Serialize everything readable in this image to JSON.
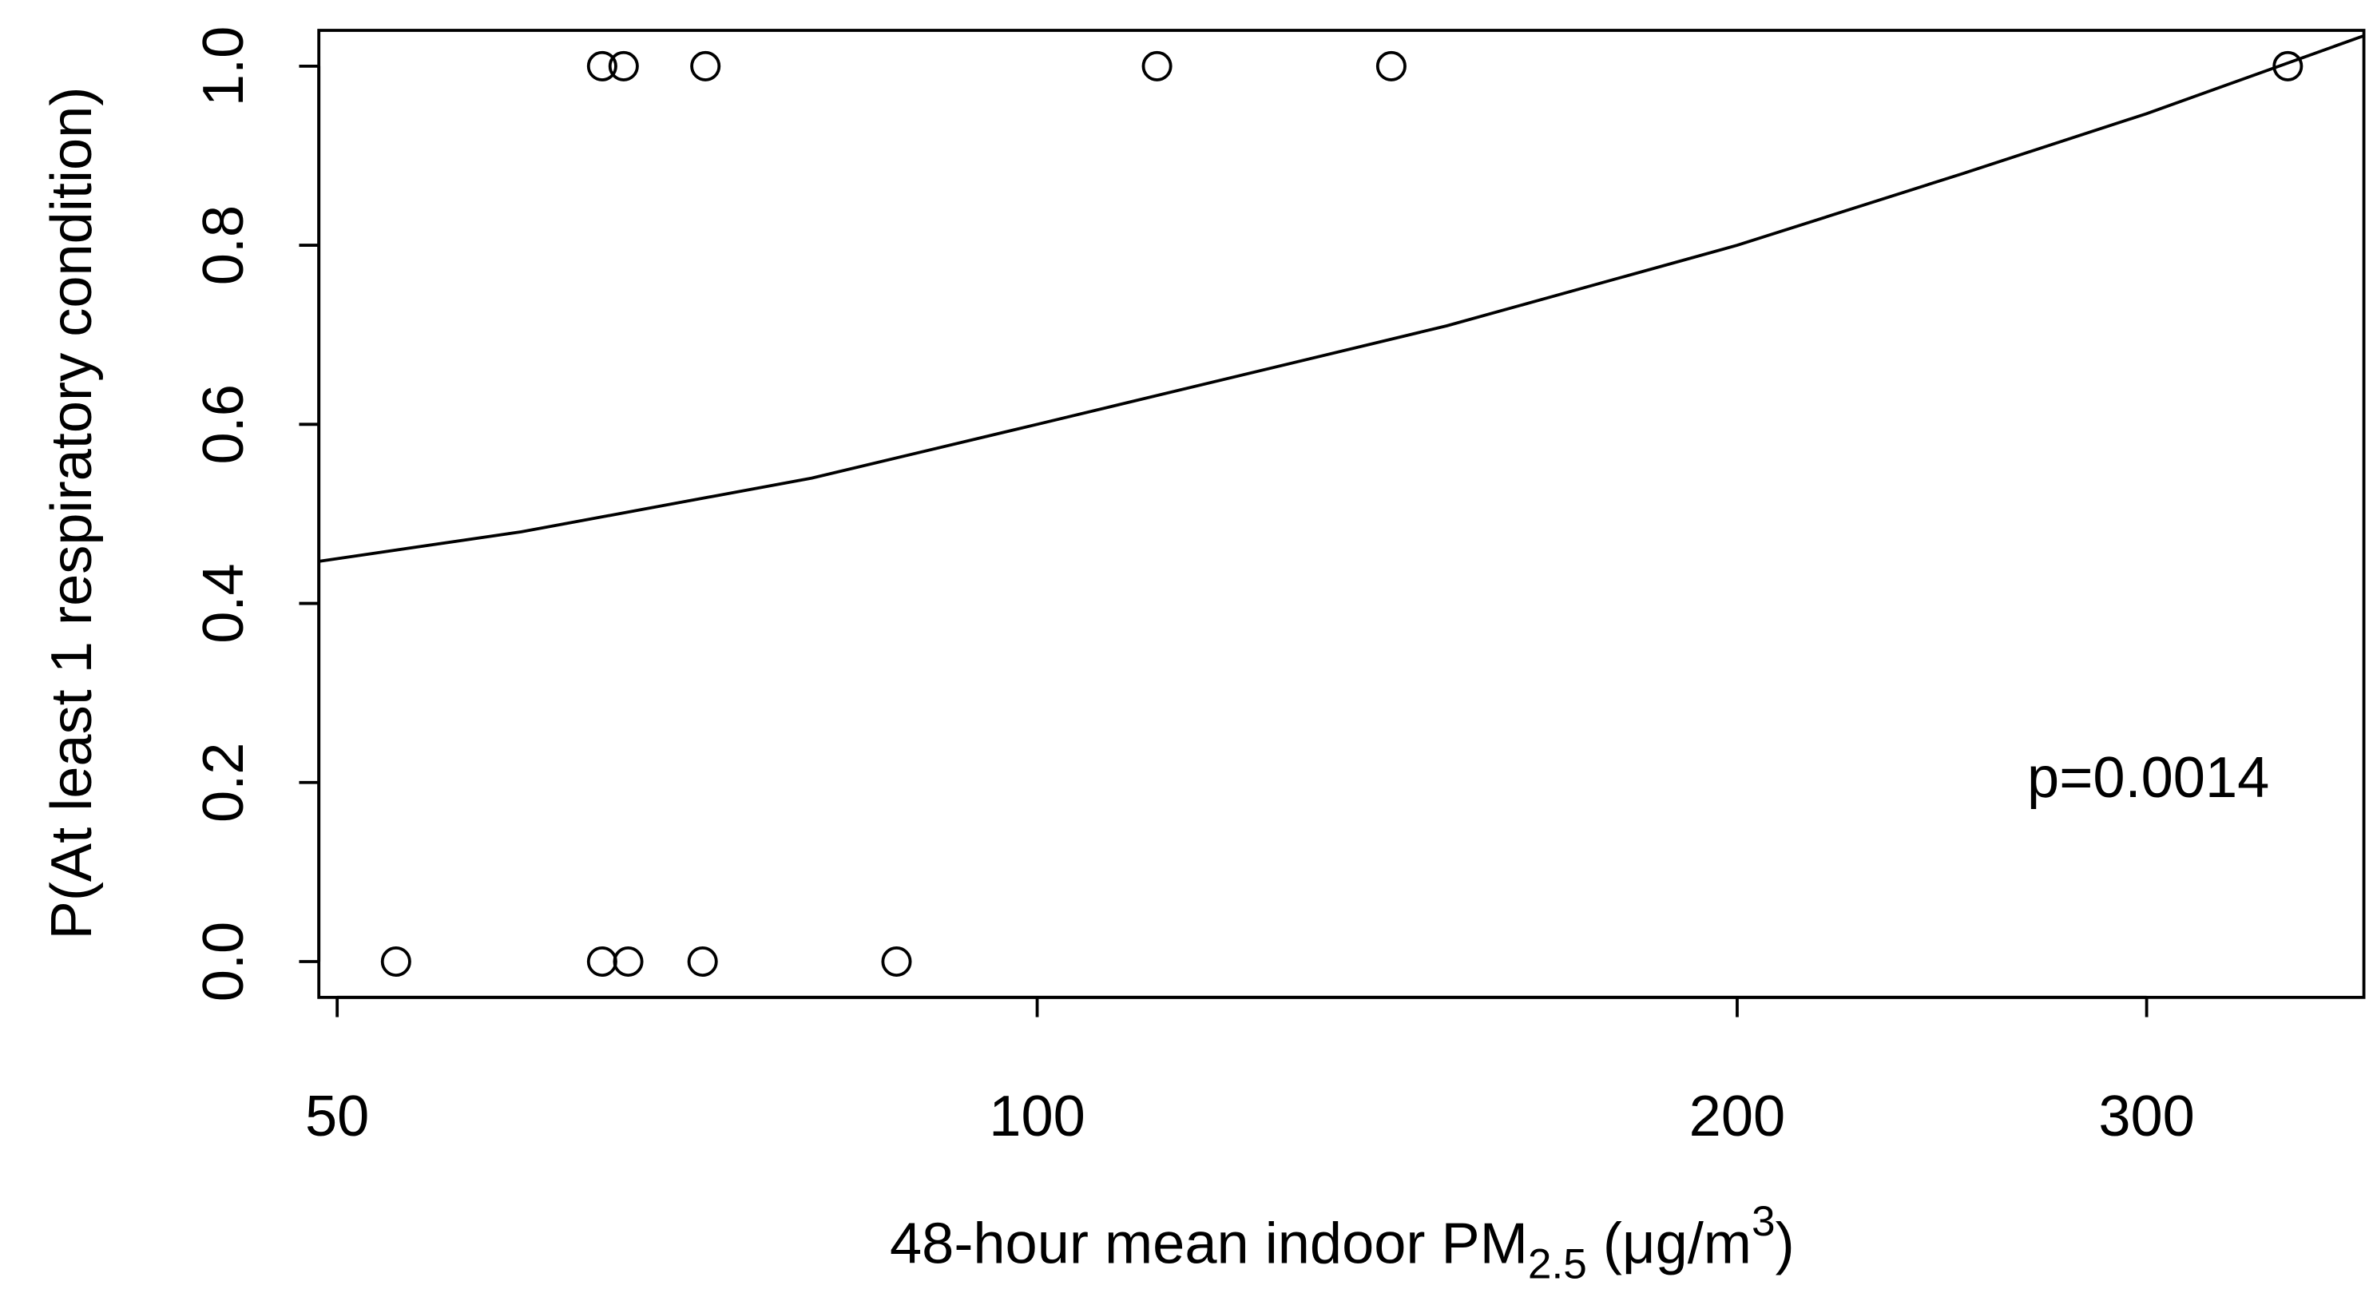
{
  "chart_data": {
    "type": "scatter",
    "x": [
      53,
      65,
      66.7,
      71.8,
      87,
      65,
      66.4,
      72,
      112.6,
      142,
      345
    ],
    "values": [
      0,
      0,
      0,
      0,
      0,
      1,
      1,
      1,
      1,
      1,
      1
    ],
    "fit": {
      "type": "line",
      "x": [
        49.1,
        60,
        80,
        100,
        150,
        200,
        250,
        300,
        372
      ],
      "values": [
        0.447,
        0.48,
        0.54,
        0.6,
        0.71,
        0.8,
        0.88,
        0.947,
        1.034
      ]
    },
    "x_scale": "log",
    "xlim": [
      49.1,
      372
    ],
    "ylim": [
      -0.04,
      1.04
    ],
    "xticks": [
      50,
      100,
      200,
      300
    ],
    "yticks": [
      {
        "value": 0,
        "label": "0.0"
      },
      0.2,
      0.4,
      0.6,
      0.8,
      {
        "value": 1,
        "label": "1.0"
      }
    ],
    "xlabel": [
      "48-hour mean indoor PM",
      "2.5",
      " (μg/m",
      "3",
      ")"
    ],
    "ylabel": "P(At least 1 respiratory condition)",
    "annotation": "p=0.0014",
    "color": "#000000"
  }
}
